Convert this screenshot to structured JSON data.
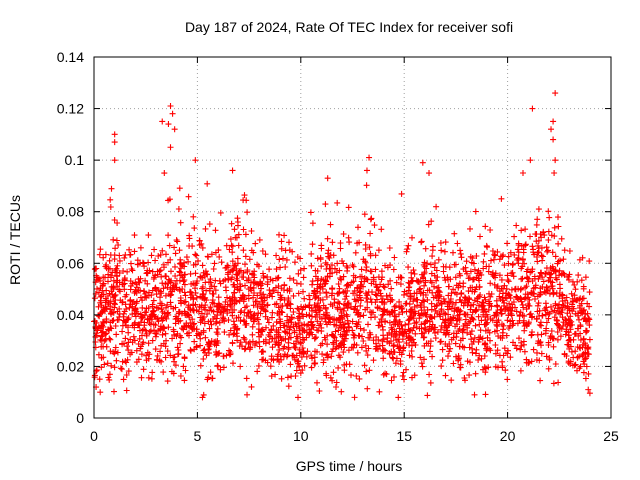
{
  "chart_data": {
    "type": "scatter",
    "title": "Day 187 of 2024, Rate Of TEC Index for receiver sofi",
    "xlabel": "GPS time / hours",
    "ylabel": "ROTI / TECUs",
    "xlim": [
      0,
      25
    ],
    "ylim": [
      0,
      0.14
    ],
    "xticks": [
      0,
      5,
      10,
      15,
      20,
      25
    ],
    "xtick_labels": [
      "0",
      "5",
      "10",
      "15",
      "20",
      "25"
    ],
    "yticks": [
      0,
      0.02,
      0.04,
      0.06,
      0.08,
      0.1,
      0.12,
      0.14
    ],
    "ytick_labels": [
      "0",
      "0.02",
      "0.04",
      "0.06",
      "0.08",
      "0.1",
      "0.12",
      "0.14"
    ],
    "grid": true,
    "marker": "+",
    "color": "#ff0000",
    "series": [
      {
        "name": "ROTI",
        "x_range": [
          0,
          24
        ],
        "typical_band": [
          0.02,
          0.06
        ],
        "notable_points": [
          {
            "x": 0.1,
            "y": 0.012
          },
          {
            "x": 0.3,
            "y": 0.01
          },
          {
            "x": 1.0,
            "y": 0.11
          },
          {
            "x": 1.0,
            "y": 0.107
          },
          {
            "x": 1.0,
            "y": 0.1
          },
          {
            "x": 3.3,
            "y": 0.115
          },
          {
            "x": 3.6,
            "y": 0.114
          },
          {
            "x": 3.7,
            "y": 0.121
          },
          {
            "x": 3.8,
            "y": 0.118
          },
          {
            "x": 3.9,
            "y": 0.112
          },
          {
            "x": 3.7,
            "y": 0.105
          },
          {
            "x": 3.4,
            "y": 0.095
          },
          {
            "x": 4.9,
            "y": 0.1
          },
          {
            "x": 6.7,
            "y": 0.096
          },
          {
            "x": 7.4,
            "y": 0.009
          },
          {
            "x": 11.3,
            "y": 0.093
          },
          {
            "x": 12.6,
            "y": 0.008
          },
          {
            "x": 13.3,
            "y": 0.101
          },
          {
            "x": 13.2,
            "y": 0.096
          },
          {
            "x": 15.9,
            "y": 0.099
          },
          {
            "x": 16.2,
            "y": 0.095
          },
          {
            "x": 18.4,
            "y": 0.009
          },
          {
            "x": 19.7,
            "y": 0.085
          },
          {
            "x": 21.2,
            "y": 0.12
          },
          {
            "x": 21.1,
            "y": 0.1
          },
          {
            "x": 22.3,
            "y": 0.126
          },
          {
            "x": 22.2,
            "y": 0.115
          },
          {
            "x": 22.1,
            "y": 0.112
          },
          {
            "x": 22.2,
            "y": 0.108
          },
          {
            "x": 22.3,
            "y": 0.1
          },
          {
            "x": 23.9,
            "y": 0.011
          }
        ],
        "activity_profile": [
          {
            "x": 0,
            "mean": 0.038,
            "spread": 0.018
          },
          {
            "x": 1,
            "mean": 0.044,
            "spread": 0.022
          },
          {
            "x": 2,
            "mean": 0.04,
            "spread": 0.02
          },
          {
            "x": 3,
            "mean": 0.04,
            "spread": 0.02
          },
          {
            "x": 3.7,
            "mean": 0.046,
            "spread": 0.024
          },
          {
            "x": 5,
            "mean": 0.042,
            "spread": 0.022
          },
          {
            "x": 6,
            "mean": 0.04,
            "spread": 0.02
          },
          {
            "x": 6.8,
            "mean": 0.05,
            "spread": 0.022
          },
          {
            "x": 8,
            "mean": 0.04,
            "spread": 0.018
          },
          {
            "x": 9,
            "mean": 0.04,
            "spread": 0.02
          },
          {
            "x": 10,
            "mean": 0.034,
            "spread": 0.016
          },
          {
            "x": 11,
            "mean": 0.044,
            "spread": 0.022
          },
          {
            "x": 12,
            "mean": 0.038,
            "spread": 0.02
          },
          {
            "x": 13.3,
            "mean": 0.048,
            "spread": 0.024
          },
          {
            "x": 14,
            "mean": 0.038,
            "spread": 0.018
          },
          {
            "x": 15,
            "mean": 0.036,
            "spread": 0.016
          },
          {
            "x": 16,
            "mean": 0.046,
            "spread": 0.022
          },
          {
            "x": 17,
            "mean": 0.04,
            "spread": 0.02
          },
          {
            "x": 18,
            "mean": 0.042,
            "spread": 0.02
          },
          {
            "x": 19,
            "mean": 0.04,
            "spread": 0.02
          },
          {
            "x": 20,
            "mean": 0.042,
            "spread": 0.02
          },
          {
            "x": 21,
            "mean": 0.046,
            "spread": 0.022
          },
          {
            "x": 22.2,
            "mean": 0.048,
            "spread": 0.024
          },
          {
            "x": 23,
            "mean": 0.038,
            "spread": 0.018
          },
          {
            "x": 24,
            "mean": 0.034,
            "spread": 0.016
          }
        ]
      }
    ]
  }
}
